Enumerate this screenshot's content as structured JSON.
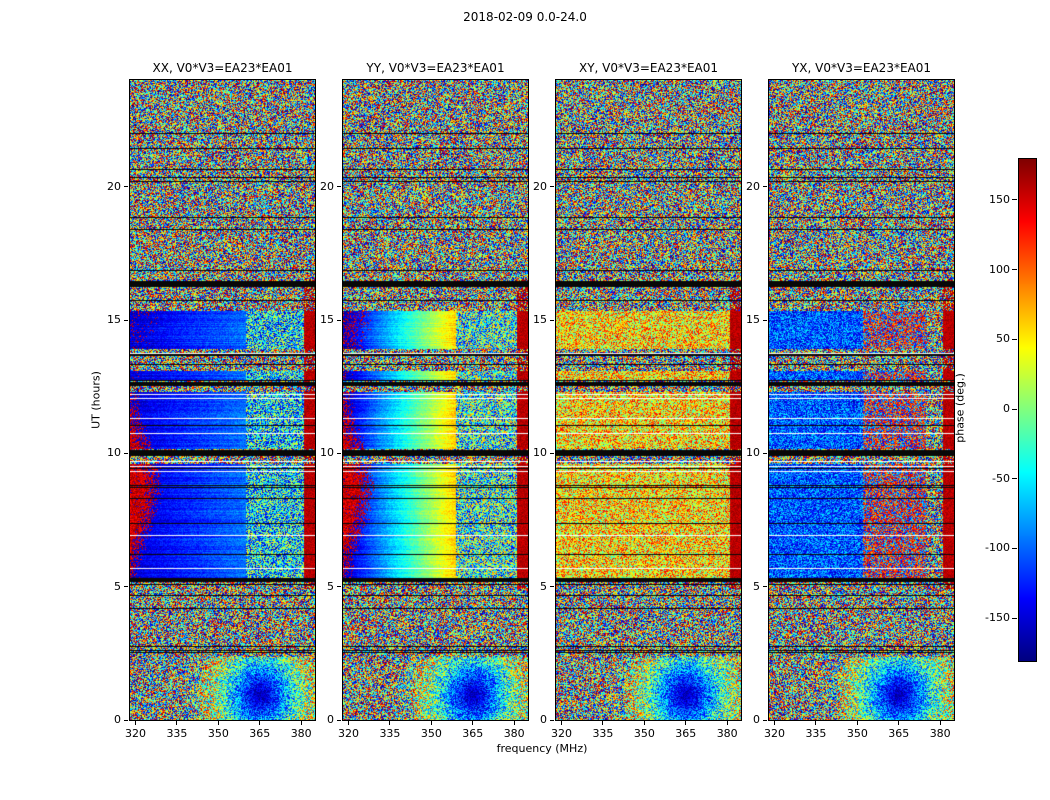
{
  "chart_data": {
    "type": "heatmap",
    "title": "2018-02-09 0.0-24.0",
    "xlabel": "frequency (MHz)",
    "ylabel": "UT (hours)",
    "x_range_mhz": [
      318,
      385
    ],
    "xticks": [
      320,
      335,
      350,
      365,
      380
    ],
    "y_range_hours": [
      0,
      24
    ],
    "yticks": [
      0,
      5,
      10,
      15,
      20
    ],
    "colormap": "jet",
    "value_range_deg": [
      -180,
      180
    ],
    "panels": [
      {
        "pol": "XX",
        "title": "XX, V0*V3=EA23*EA01"
      },
      {
        "pol": "YY",
        "title": "YY, V0*V3=EA23*EA01"
      },
      {
        "pol": "XY",
        "title": "XY, V0*V3=EA23*EA01"
      },
      {
        "pol": "YX",
        "title": "YX, V0*V3=EA23*EA01"
      }
    ],
    "colorbar": {
      "label": "phase (deg.)",
      "ticks": [
        150,
        100,
        50,
        0,
        -50,
        -100,
        -150
      ]
    },
    "features": {
      "coherent_intervals_ut": [
        [
          5.3,
          9.6
        ],
        [
          10.15,
          12.3
        ],
        [
          12.75,
          13.1
        ],
        [
          13.9,
          15.35
        ]
      ],
      "noise_intervals_ut": [
        [
          0,
          5.2
        ],
        [
          16.3,
          24
        ]
      ],
      "stripes": "Horizontal black and white interference stripes at matching times in all four panels; heavy dark bands near UT 5.2, 10.0, 12.6 and 16.3",
      "XX": "Coherent phase: deep blue (about -150 to -100 deg) from 320-360 MHz with red phase-wrap patches below ~327 MHz before UT 12; mottled green/cyan speckle 360-381 MHz; red column above 381 MHz",
      "YY": "Coherent phase ramps from dark blue (about -160 deg) at 320 MHz through cyan and green to yellow (about +60 deg) near 358 MHz; mottled speckle above 359 MHz; red column above 381 MHz",
      "XY": "Coherent band shows warm yellow/orange mottle (about +55 deg) across the band; red column above 381 MHz",
      "YX": "Coherent band shows blue mottle (about -105 deg) below 352 MHz and mixed red-orange/blue 352-375 MHz; speckle above; red column above 381 MHz",
      "other": "Fully random multicolour speckle (jet colormap, unlocked phase) elsewhere; ring-like moire interference pattern near 365 MHz around UT 1 in every panel"
    }
  }
}
